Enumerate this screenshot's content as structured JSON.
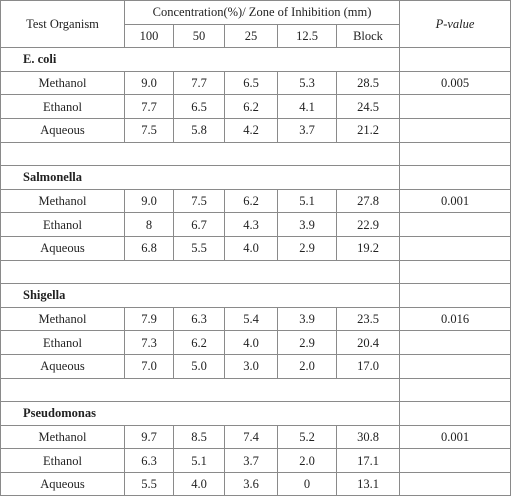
{
  "header": {
    "test_organism": "Test Organism",
    "concentration": "Concentration(%)/ Zone of Inhibition (mm)",
    "p_value": "P-value",
    "columns": [
      "100",
      "50",
      "25",
      "12.5",
      "Block"
    ]
  },
  "groups": [
    {
      "organism": "E. coli",
      "rows": [
        {
          "extract": "Methanol",
          "values": [
            "9.0",
            "7.7",
            "6.5",
            "5.3",
            "28.5"
          ]
        },
        {
          "extract": "Ethanol",
          "values": [
            "7.7",
            "6.5",
            "6.2",
            "4.1",
            "24.5"
          ]
        },
        {
          "extract": "Aqueous",
          "values": [
            "7.5",
            "5.8",
            "4.2",
            "3.7",
            "21.2"
          ]
        }
      ],
      "p_value": "0.005"
    },
    {
      "organism": "Salmonella",
      "rows": [
        {
          "extract": "Methanol",
          "values": [
            "9.0",
            "7.5",
            "6.2",
            "5.1",
            "27.8"
          ]
        },
        {
          "extract": "Ethanol",
          "values": [
            "8",
            "6.7",
            "4.3",
            "3.9",
            "22.9"
          ]
        },
        {
          "extract": "Aqueous",
          "values": [
            "6.8",
            "5.5",
            "4.0",
            "2.9",
            "19.2"
          ]
        }
      ],
      "p_value": "0.001"
    },
    {
      "organism": "Shigella",
      "rows": [
        {
          "extract": "Methanol",
          "values": [
            "7.9",
            "6.3",
            "5.4",
            "3.9",
            "23.5"
          ]
        },
        {
          "extract": "Ethanol",
          "values": [
            "7.3",
            "6.2",
            "4.0",
            "2.9",
            "20.4"
          ]
        },
        {
          "extract": "Aqueous",
          "values": [
            "7.0",
            "5.0",
            "3.0",
            "2.0",
            "17.0"
          ]
        }
      ],
      "p_value": "0.016"
    },
    {
      "organism": "Pseudomonas",
      "rows": [
        {
          "extract": "Methanol",
          "values": [
            "9.7",
            "8.5",
            "7.4",
            "5.2",
            "30.8"
          ]
        },
        {
          "extract": "Ethanol",
          "values": [
            "6.3",
            "5.1",
            "3.7",
            "2.0",
            "17.1"
          ]
        },
        {
          "extract": "Aqueous",
          "values": [
            "5.5",
            "4.0",
            "3.6",
            "0",
            "13.1"
          ]
        }
      ],
      "p_value": "0.001"
    }
  ]
}
